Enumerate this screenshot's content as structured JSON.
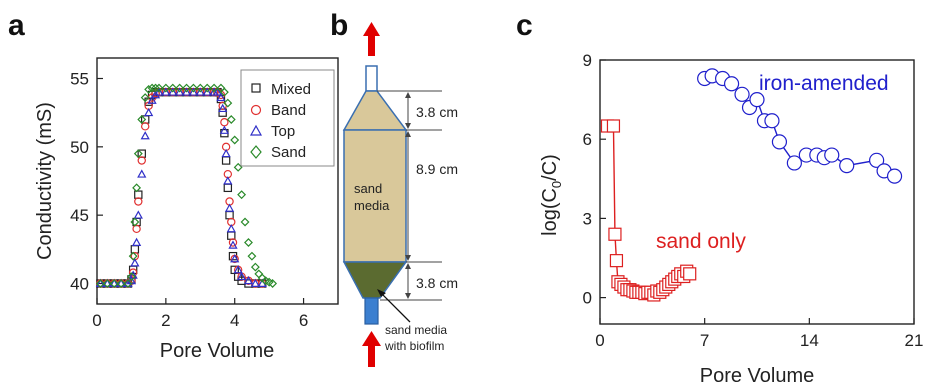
{
  "panel_labels": {
    "a": "a",
    "b": "b",
    "c": "c"
  },
  "colors": {
    "mixed": "#222222",
    "band": "#e03030",
    "top": "#3030c8",
    "sand": "#2a8a2a",
    "sand_only": "#dd2020",
    "iron": "#2020cc",
    "column_fill": "#d9c89a",
    "biofilm_fill": "#5b6b30",
    "column_stroke": "#3a6fb0",
    "arrow": "#e00000"
  },
  "diagram": {
    "dim_top": "3.8 cm",
    "dim_middle": "8.9 cm",
    "dim_bottom": "3.8 cm",
    "label_media_line1": "sand",
    "label_media_line2": "media",
    "label_biofilm_line1": "sand media",
    "label_biofilm_line2": "with biofilm"
  },
  "chart_data": [
    {
      "type": "scatter",
      "panel": "a",
      "title": "",
      "xlabel": "Pore Volume",
      "ylabel": "Conductivity (mS)",
      "xlim": [
        0,
        7
      ],
      "ylim": [
        38.5,
        56.5
      ],
      "xticks": [
        "0",
        "2",
        "4",
        "6"
      ],
      "yticks": [
        "40",
        "45",
        "50",
        "55"
      ],
      "legend_position": "top-right",
      "series": [
        {
          "name": "Mixed",
          "marker": "square",
          "color_key": "mixed",
          "x": [
            0.1,
            0.3,
            0.5,
            0.7,
            0.9,
            1.0,
            1.05,
            1.1,
            1.15,
            1.2,
            1.3,
            1.4,
            1.5,
            1.6,
            1.7,
            1.8,
            2.0,
            2.2,
            2.4,
            2.6,
            2.8,
            3.0,
            3.2,
            3.4,
            3.5,
            3.6,
            3.65,
            3.7,
            3.75,
            3.8,
            3.85,
            3.9,
            3.95,
            4.0,
            4.1,
            4.2,
            4.4,
            4.6,
            4.8
          ],
          "y": [
            40,
            40,
            40,
            40,
            40,
            40.3,
            41,
            42.5,
            44.5,
            46.5,
            49.5,
            52,
            53.3,
            53.8,
            54,
            54,
            54,
            54,
            54,
            54,
            54,
            54,
            54,
            54,
            54,
            53.5,
            52.5,
            51,
            49,
            47,
            45,
            43.5,
            42,
            41,
            40.5,
            40.2,
            40,
            40,
            40
          ]
        },
        {
          "name": "Band",
          "marker": "circle",
          "color_key": "band",
          "x": [
            0.1,
            0.3,
            0.5,
            0.7,
            0.9,
            1.0,
            1.05,
            1.1,
            1.15,
            1.2,
            1.3,
            1.4,
            1.5,
            1.6,
            1.7,
            1.8,
            2.0,
            2.2,
            2.4,
            2.6,
            2.8,
            3.0,
            3.2,
            3.4,
            3.5,
            3.6,
            3.65,
            3.7,
            3.75,
            3.8,
            3.85,
            3.9,
            3.95,
            4.0,
            4.1,
            4.2,
            4.4,
            4.6,
            4.8
          ],
          "y": [
            40,
            40,
            40,
            40,
            40,
            40.2,
            40.8,
            42,
            44,
            46,
            49,
            51.5,
            53,
            53.6,
            53.9,
            54,
            54,
            54,
            54,
            54,
            54,
            54,
            54,
            54,
            54,
            53.8,
            53,
            51.8,
            50,
            48,
            46,
            44.5,
            43,
            41.8,
            41,
            40.5,
            40.2,
            40,
            40
          ]
        },
        {
          "name": "Top",
          "marker": "triangle",
          "color_key": "top",
          "x": [
            0.1,
            0.3,
            0.5,
            0.7,
            0.9,
            1.0,
            1.05,
            1.1,
            1.15,
            1.2,
            1.3,
            1.4,
            1.5,
            1.6,
            1.7,
            1.8,
            2.0,
            2.2,
            2.4,
            2.6,
            2.8,
            3.0,
            3.2,
            3.4,
            3.5,
            3.6,
            3.65,
            3.7,
            3.75,
            3.8,
            3.85,
            3.9,
            3.95,
            4.0,
            4.1,
            4.2,
            4.4,
            4.6,
            4.8
          ],
          "y": [
            40,
            40,
            40,
            40,
            40,
            40.2,
            40.6,
            41.5,
            43,
            45,
            48,
            50.8,
            52.5,
            53.4,
            53.8,
            54,
            54,
            54,
            54,
            54,
            54,
            54,
            54,
            54,
            54,
            53.6,
            52.8,
            51.2,
            49.5,
            47.5,
            45.5,
            44,
            42.8,
            41.8,
            41,
            40.5,
            40.2,
            40,
            40
          ]
        },
        {
          "name": "Sand",
          "marker": "diamond",
          "color_key": "sand",
          "x": [
            0.1,
            0.3,
            0.5,
            0.7,
            0.9,
            1.0,
            1.05,
            1.1,
            1.15,
            1.2,
            1.3,
            1.4,
            1.5,
            1.6,
            1.7,
            1.8,
            2.0,
            2.2,
            2.4,
            2.6,
            2.8,
            3.0,
            3.2,
            3.4,
            3.6,
            3.7,
            3.8,
            3.9,
            4.0,
            4.1,
            4.2,
            4.3,
            4.4,
            4.5,
            4.6,
            4.7,
            4.8,
            4.9,
            5.0,
            5.1
          ],
          "y": [
            40,
            40,
            40,
            40,
            40,
            40.5,
            42,
            44.5,
            47,
            49.5,
            52,
            53.6,
            54.2,
            54.3,
            54.3,
            54.3,
            54.3,
            54.3,
            54.3,
            54.3,
            54.3,
            54.3,
            54.3,
            54.3,
            54.3,
            54,
            53.2,
            52,
            50.5,
            48.5,
            46.5,
            44.5,
            43,
            42,
            41.2,
            40.7,
            40.4,
            40.2,
            40.1,
            40
          ]
        }
      ]
    },
    {
      "type": "scatter",
      "panel": "c",
      "title": "",
      "xlabel": "Pore Volume",
      "ylabel_main": "log(C",
      "ylabel_sub": "0",
      "ylabel_tail": "/C)",
      "xlim": [
        0,
        21
      ],
      "ylim": [
        -1,
        9
      ],
      "xticks": [
        "0",
        "7",
        "14",
        "21"
      ],
      "yticks": [
        "0",
        "3",
        "6",
        "9"
      ],
      "series": [
        {
          "name": "sand only",
          "marker": "square",
          "color_key": "sand_only",
          "x": [
            0.5,
            0.9,
            1.0,
            1.1,
            1.2,
            1.4,
            1.6,
            1.8,
            2.0,
            2.2,
            2.4,
            2.6,
            2.8,
            3.0,
            3.2,
            3.4,
            3.6,
            3.8,
            4.0,
            4.2,
            4.4,
            4.6,
            4.8,
            5.0,
            5.2,
            5.4,
            5.6,
            5.8,
            6.0
          ],
          "y": [
            6.5,
            6.5,
            2.4,
            1.4,
            0.6,
            0.5,
            0.4,
            0.3,
            0.3,
            0.25,
            0.2,
            0.2,
            0.2,
            0.15,
            0.2,
            0.2,
            0.1,
            0.25,
            0.2,
            0.3,
            0.4,
            0.5,
            0.6,
            0.7,
            0.8,
            0.9,
            0.8,
            1.0,
            0.9
          ]
        },
        {
          "name": "iron-amended",
          "marker": "circle",
          "color_key": "iron",
          "x": [
            7.0,
            7.5,
            8.2,
            8.8,
            9.5,
            10.0,
            10.5,
            11.0,
            11.5,
            12.0,
            13.0,
            13.8,
            14.5,
            15.0,
            15.5,
            16.5,
            18.5,
            19.0,
            19.7
          ],
          "y": [
            8.3,
            8.4,
            8.3,
            8.1,
            7.7,
            7.2,
            7.5,
            6.7,
            6.7,
            5.9,
            5.1,
            5.4,
            5.4,
            5.3,
            5.4,
            5.0,
            5.2,
            4.8,
            4.6
          ]
        }
      ]
    }
  ]
}
